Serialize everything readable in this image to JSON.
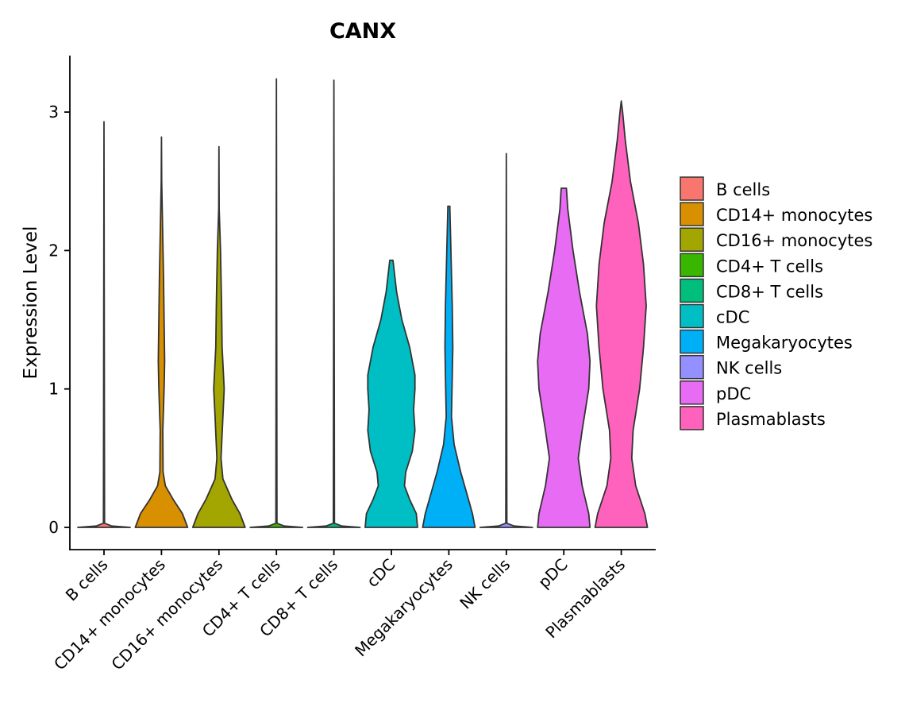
{
  "chart_data": {
    "type": "violin",
    "title": "CANX",
    "xlabel": "",
    "ylabel": "Expression Level",
    "ylim": [
      -0.16,
      3.4
    ],
    "yticks": [
      0,
      1,
      2,
      3
    ],
    "legend_position": "right",
    "categories": [
      "B cells",
      "CD14+ monocytes",
      "CD16+ monocytes",
      "CD4+ T cells",
      "CD8+ T cells",
      "cDC",
      "Megakaryocytes",
      "NK cells",
      "pDC",
      "Plasmablasts"
    ],
    "colors": [
      "#F8766D",
      "#D89000",
      "#A3A500",
      "#39B600",
      "#00BF7D",
      "#00BFC4",
      "#00B0F6",
      "#9590FF",
      "#E76BF3",
      "#FF62BC"
    ],
    "max_values": [
      2.93,
      2.82,
      2.75,
      3.24,
      3.23,
      1.93,
      2.32,
      2.7,
      2.45,
      3.08
    ],
    "density_profiles": [
      [
        [
          0,
          1.0
        ],
        [
          0.01,
          0.3
        ],
        [
          0.03,
          0.02
        ]
      ],
      [
        [
          0,
          1.0
        ],
        [
          0.1,
          0.8
        ],
        [
          0.2,
          0.45
        ],
        [
          0.3,
          0.15
        ],
        [
          0.4,
          0.06
        ],
        [
          0.7,
          0.05
        ],
        [
          1.0,
          0.1
        ],
        [
          1.2,
          0.12
        ],
        [
          1.5,
          0.1
        ],
        [
          1.8,
          0.08
        ],
        [
          2.2,
          0.04
        ],
        [
          2.5,
          0.01
        ]
      ],
      [
        [
          0,
          1.0
        ],
        [
          0.1,
          0.8
        ],
        [
          0.2,
          0.5
        ],
        [
          0.35,
          0.15
        ],
        [
          0.5,
          0.08
        ],
        [
          0.8,
          0.15
        ],
        [
          1.0,
          0.2
        ],
        [
          1.3,
          0.12
        ],
        [
          1.6,
          0.1
        ],
        [
          2.0,
          0.06
        ],
        [
          2.3,
          0.01
        ]
      ],
      [
        [
          0,
          1.0
        ],
        [
          0.01,
          0.3
        ],
        [
          0.03,
          0.02
        ]
      ],
      [
        [
          0,
          1.0
        ],
        [
          0.01,
          0.3
        ],
        [
          0.03,
          0.02
        ]
      ],
      [
        [
          0,
          1.0
        ],
        [
          0.1,
          0.95
        ],
        [
          0.2,
          0.7
        ],
        [
          0.3,
          0.5
        ],
        [
          0.4,
          0.55
        ],
        [
          0.55,
          0.8
        ],
        [
          0.7,
          0.9
        ],
        [
          0.85,
          0.85
        ],
        [
          1.0,
          0.9
        ],
        [
          1.1,
          0.9
        ],
        [
          1.3,
          0.7
        ],
        [
          1.5,
          0.4
        ],
        [
          1.7,
          0.2
        ],
        [
          1.9,
          0.08
        ],
        [
          1.93,
          0.06
        ]
      ],
      [
        [
          0,
          1.0
        ],
        [
          0.1,
          0.9
        ],
        [
          0.2,
          0.75
        ],
        [
          0.4,
          0.45
        ],
        [
          0.6,
          0.2
        ],
        [
          0.8,
          0.1
        ],
        [
          1.0,
          0.12
        ],
        [
          1.3,
          0.15
        ],
        [
          1.6,
          0.13
        ],
        [
          2.0,
          0.08
        ],
        [
          2.3,
          0.04
        ],
        [
          2.32,
          0.04
        ]
      ],
      [
        [
          0,
          1.0
        ],
        [
          0.01,
          0.3
        ],
        [
          0.03,
          0.02
        ]
      ],
      [
        [
          0,
          1.0
        ],
        [
          0.1,
          0.95
        ],
        [
          0.3,
          0.7
        ],
        [
          0.5,
          0.55
        ],
        [
          0.7,
          0.7
        ],
        [
          1.0,
          0.95
        ],
        [
          1.2,
          1.0
        ],
        [
          1.4,
          0.9
        ],
        [
          1.7,
          0.6
        ],
        [
          2.0,
          0.35
        ],
        [
          2.3,
          0.15
        ],
        [
          2.45,
          0.1
        ]
      ],
      [
        [
          0,
          1.0
        ],
        [
          0.1,
          0.9
        ],
        [
          0.3,
          0.55
        ],
        [
          0.5,
          0.4
        ],
        [
          0.7,
          0.45
        ],
        [
          1.0,
          0.7
        ],
        [
          1.3,
          0.85
        ],
        [
          1.6,
          0.95
        ],
        [
          1.9,
          0.85
        ],
        [
          2.2,
          0.65
        ],
        [
          2.5,
          0.35
        ],
        [
          2.8,
          0.15
        ],
        [
          3.0,
          0.05
        ]
      ]
    ]
  }
}
